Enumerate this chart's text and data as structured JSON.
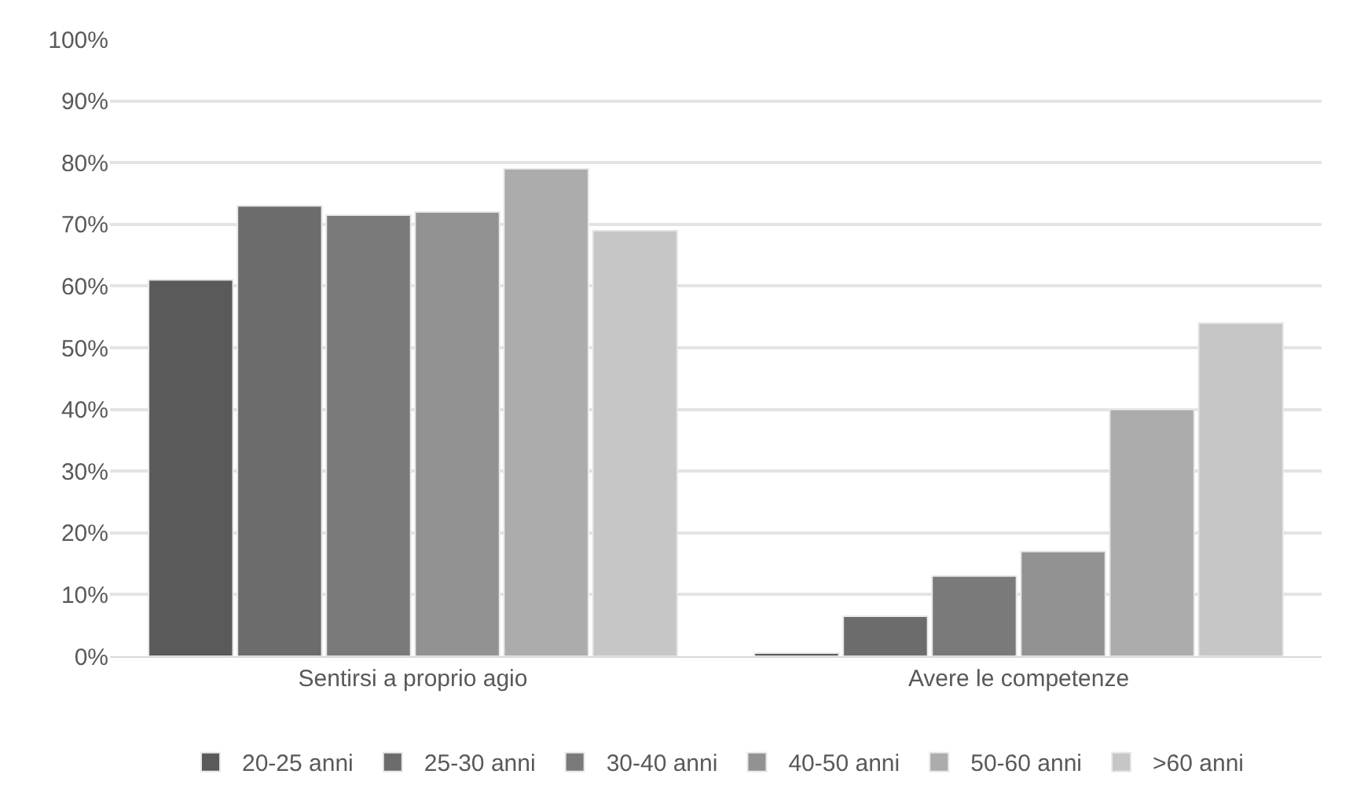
{
  "chart_data": {
    "type": "bar",
    "categories": [
      "Sentirsi a proprio agio",
      "Avere le competenze"
    ],
    "series": [
      {
        "name": "20-25 anni",
        "color": "#5a5a5a",
        "values": [
          61,
          0.5
        ]
      },
      {
        "name": "25-30 anni",
        "color": "#6c6c6c",
        "values": [
          73,
          6.5
        ]
      },
      {
        "name": "30-40 anni",
        "color": "#7a7a7a",
        "values": [
          71.5,
          13
        ]
      },
      {
        "name": "40-50 anni",
        "color": "#929292",
        "values": [
          72,
          17
        ]
      },
      {
        "name": "50-60 anni",
        "color": "#acacac",
        "values": [
          79,
          40
        ]
      },
      {
        "name": ">60 anni",
        "color": "#c6c6c6",
        "values": [
          69,
          54
        ]
      }
    ],
    "ylim": [
      0,
      100
    ],
    "yticks": [
      {
        "value": 0,
        "label": "0%"
      },
      {
        "value": 10,
        "label": "10%"
      },
      {
        "value": 20,
        "label": "20%"
      },
      {
        "value": 30,
        "label": "30%"
      },
      {
        "value": 40,
        "label": "40%"
      },
      {
        "value": 50,
        "label": "50%"
      },
      {
        "value": 60,
        "label": "60%"
      },
      {
        "value": 70,
        "label": "70%"
      },
      {
        "value": 80,
        "label": "80%"
      },
      {
        "value": 90,
        "label": "90%"
      },
      {
        "value": 100,
        "label": "100%"
      }
    ],
    "grid": "y",
    "legend": "bottom"
  }
}
